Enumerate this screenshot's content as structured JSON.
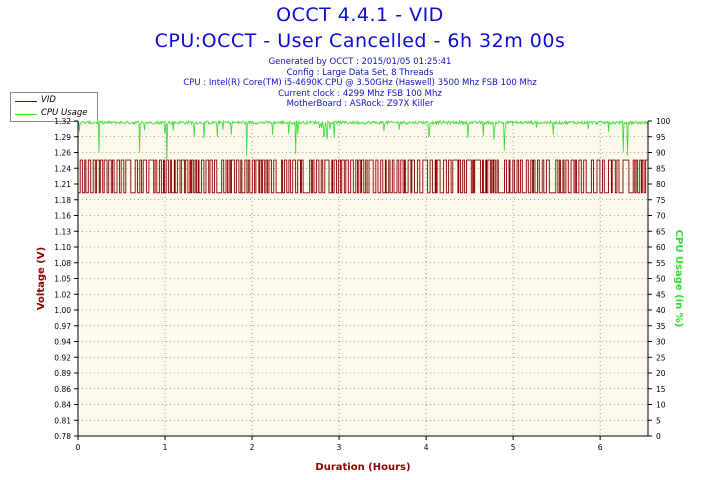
{
  "title": "OCCT 4.4.1 - VID",
  "subtitle": "CPU:OCCT - User Cancelled - 6h 32m 00s",
  "info_lines": [
    "Generated by OCCT : 2015/01/05 01:25:41",
    "Config : Large Data Set, 8 Threads",
    "CPU : Intel(R) Core(TM) i5-4690K CPU @ 3.50GHz (Haswell) 3500 Mhz FSB 100 Mhz",
    "Current clock : 4299 Mhz FSB 100 Mhz",
    "MotherBoard : ASRock: Z97X Killer"
  ],
  "colors": {
    "vid": "#8b0000",
    "cpu": "#33dd33",
    "title": "#0b0bd6",
    "plot_bg": "#fdf8ec",
    "grid": "#555555"
  },
  "chart_data": {
    "type": "line",
    "xlabel": "Duration (Hours)",
    "ylabel_left": "Voltage (V)",
    "ylabel_right": "CPU Usage (in %)",
    "xlim": [
      0,
      6.55
    ],
    "ylim_left": [
      0.78,
      1.32
    ],
    "ylim_right": [
      0,
      100
    ],
    "x_ticks": [
      "0",
      "1",
      "2",
      "3",
      "4",
      "5",
      "6"
    ],
    "y_left_ticks": [
      "0.78",
      "0.81",
      "0.84",
      "0.86",
      "0.89",
      "0.92",
      "0.94",
      "0.97",
      "1.00",
      "1.02",
      "1.05",
      "1.08",
      "1.10",
      "1.13",
      "1.16",
      "1.18",
      "1.21",
      "1.24",
      "1.26",
      "1.29",
      "1.32"
    ],
    "y_right_ticks": [
      "0",
      "5",
      "10",
      "15",
      "20",
      "25",
      "30",
      "35",
      "40",
      "45",
      "50",
      "55",
      "60",
      "65",
      "70",
      "75",
      "80",
      "85",
      "90",
      "95",
      "100"
    ],
    "grid": true,
    "legend_position": "top-left",
    "series": [
      {
        "name": "VID",
        "axis": "left",
        "pattern": "oscillating",
        "low": 1.197,
        "high": 1.253
      },
      {
        "name": "CPU Usage",
        "axis": "right",
        "pattern": "near-constant",
        "typical": 99,
        "min_dip": 87
      }
    ]
  }
}
